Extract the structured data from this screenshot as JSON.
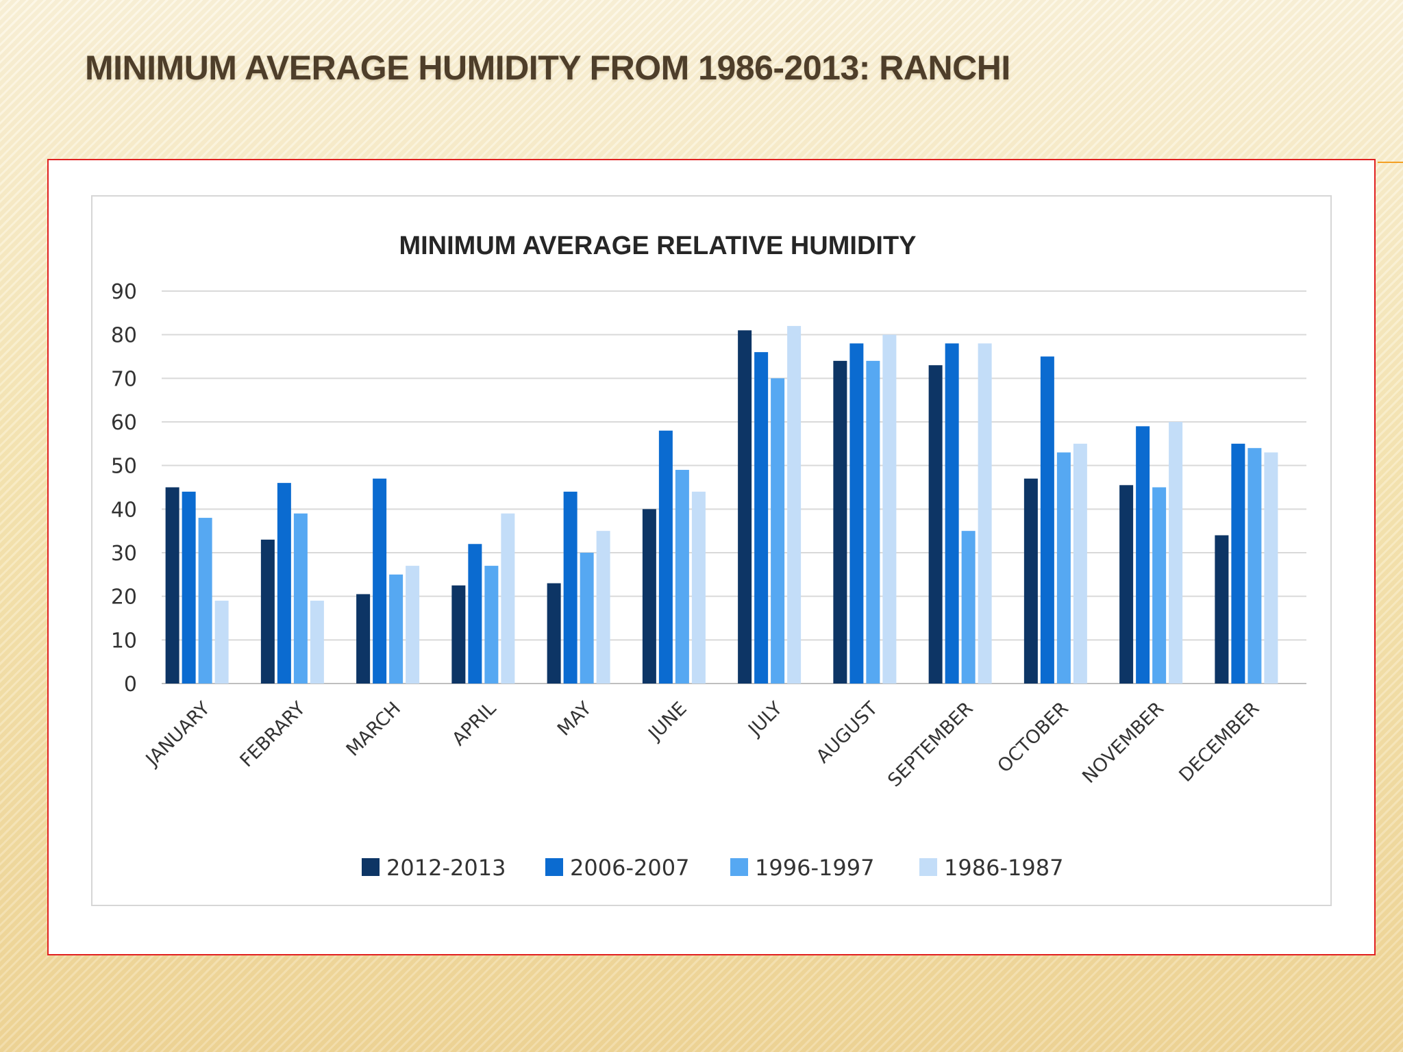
{
  "slide": {
    "title": "MINIMUM AVERAGE HUMIDITY FROM 1986-2013: RANCHI"
  },
  "colors": {
    "frame_border": "#e02020",
    "title_text": "#4e3e2a",
    "accent": "#f4a023"
  },
  "chart_data": {
    "type": "bar",
    "title": "MINIMUM AVERAGE RELATIVE HUMIDITY",
    "xlabel": "",
    "ylabel": "",
    "ylim": [
      0,
      90
    ],
    "yticks": [
      0,
      10,
      20,
      30,
      40,
      50,
      60,
      70,
      80,
      90
    ],
    "grid": true,
    "legend_position": "bottom",
    "categories": [
      "JANUARY",
      "FEBRARY",
      "MARCH",
      "APRIL",
      "MAY",
      "JUNE",
      "JULY",
      "AUGUST",
      "SEPTEMBER",
      "OCTOBER",
      "NOVEMBER",
      "DECEMBER"
    ],
    "series": [
      {
        "name": "2012-2013",
        "color": "#0d3565",
        "values": [
          45,
          33,
          20.5,
          22.5,
          23,
          40,
          81,
          74,
          73,
          47,
          45.5,
          34
        ]
      },
      {
        "name": "2006-2007",
        "color": "#0b6bd0",
        "values": [
          44,
          46,
          47,
          32,
          44,
          58,
          76,
          78,
          78,
          75,
          59,
          55
        ]
      },
      {
        "name": "1996-1997",
        "color": "#56a8f2",
        "values": [
          38,
          39,
          25,
          27,
          30,
          49,
          70,
          74,
          35,
          53,
          45,
          54
        ]
      },
      {
        "name": "1986-1987",
        "color": "#c3ddf8",
        "values": [
          19,
          19,
          27,
          39,
          35,
          44,
          82,
          80,
          78,
          55,
          60,
          53
        ]
      }
    ]
  }
}
